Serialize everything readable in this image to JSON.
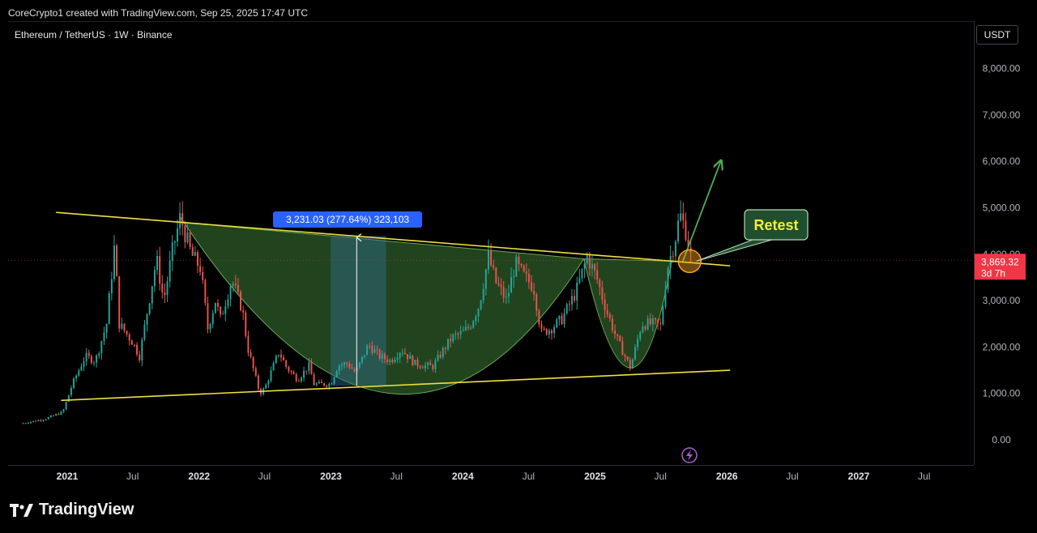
{
  "caption": "CoreCrypto1 created with TradingView.com, Sep 25, 2025 17:47 UTC",
  "symbol": "Ethereum / TetherUS · 1W · Binance",
  "currency": "USDT",
  "brand": "TradingView",
  "colors": {
    "up": "#26a69a",
    "down": "#ef5350",
    "trendline": "#f0e040",
    "pattern_fill": "#2e5e2a",
    "arrow": "#4caf50",
    "badge": "#2962ff",
    "price_tag": "#f23645"
  },
  "chart_data": {
    "type": "candlestick",
    "title": "Ethereum / TetherUS · 1W · Binance",
    "ylim": [
      -600,
      9000
    ],
    "y_ticks": [
      0,
      1000,
      2000,
      3000,
      4000,
      5000,
      6000,
      7000,
      8000
    ],
    "y_tick_labels": [
      "0.00",
      "1,000.00",
      "2,000.00",
      "3,000.00",
      "4,000.00",
      "5,000.00",
      "6,000.00",
      "7,000.00",
      "8,000.00"
    ],
    "x_ticks": [
      {
        "label": "2021",
        "date": "2021-01-01",
        "bold": true
      },
      {
        "label": "Jul",
        "date": "2021-07-01",
        "bold": false
      },
      {
        "label": "2022",
        "date": "2022-01-01",
        "bold": true
      },
      {
        "label": "Jul",
        "date": "2022-07-01",
        "bold": false
      },
      {
        "label": "2023",
        "date": "2023-01-01",
        "bold": true
      },
      {
        "label": "Jul",
        "date": "2023-07-01",
        "bold": false
      },
      {
        "label": "2024",
        "date": "2024-01-01",
        "bold": true
      },
      {
        "label": "Jul",
        "date": "2024-07-01",
        "bold": false
      },
      {
        "label": "2025",
        "date": "2025-01-01",
        "bold": true
      },
      {
        "label": "Jul",
        "date": "2025-07-01",
        "bold": false
      },
      {
        "label": "2026",
        "date": "2026-01-01",
        "bold": true
      },
      {
        "label": "Jul",
        "date": "2026-07-01",
        "bold": false
      },
      {
        "label": "2027",
        "date": "2027-01-01",
        "bold": true
      },
      {
        "label": "Jul",
        "date": "2027-07-01",
        "bold": false
      }
    ],
    "price_path": [
      [
        "2020-09-01",
        360
      ],
      [
        "2020-11-01",
        450
      ],
      [
        "2020-12-20",
        600
      ],
      [
        "2021-01-15",
        1200
      ],
      [
        "2021-02-20",
        1800
      ],
      [
        "2021-03-20",
        1700
      ],
      [
        "2021-04-20",
        2500
      ],
      [
        "2021-05-12",
        4200
      ],
      [
        "2021-05-25",
        2500
      ],
      [
        "2021-07-01",
        2100
      ],
      [
        "2021-07-20",
        1800
      ],
      [
        "2021-08-20",
        3200
      ],
      [
        "2021-09-05",
        3900
      ],
      [
        "2021-09-25",
        3000
      ],
      [
        "2021-10-20",
        4100
      ],
      [
        "2021-11-10",
        4800
      ],
      [
        "2021-12-10",
        4000
      ],
      [
        "2022-01-05",
        3700
      ],
      [
        "2022-01-25",
        2400
      ],
      [
        "2022-02-15",
        3000
      ],
      [
        "2022-03-01",
        2600
      ],
      [
        "2022-04-01",
        3450
      ],
      [
        "2022-05-01",
        2800
      ],
      [
        "2022-05-15",
        2000
      ],
      [
        "2022-06-18",
        1000
      ],
      [
        "2022-07-01",
        1100
      ],
      [
        "2022-08-10",
        1900
      ],
      [
        "2022-09-01",
        1550
      ],
      [
        "2022-10-01",
        1300
      ],
      [
        "2022-11-01",
        1600
      ],
      [
        "2022-11-15",
        1200
      ],
      [
        "2022-12-31",
        1200
      ],
      [
        "2023-01-20",
        1600
      ],
      [
        "2023-02-15",
        1650
      ],
      [
        "2023-03-10",
        1450
      ],
      [
        "2023-04-15",
        2050
      ],
      [
        "2023-05-15",
        1800
      ],
      [
        "2023-06-15",
        1700
      ],
      [
        "2023-07-15",
        1950
      ],
      [
        "2023-08-20",
        1650
      ],
      [
        "2023-09-15",
        1600
      ],
      [
        "2023-10-10",
        1580
      ],
      [
        "2023-11-01",
        1850
      ],
      [
        "2023-12-01",
        2200
      ],
      [
        "2023-12-31",
        2300
      ],
      [
        "2024-01-20",
        2450
      ],
      [
        "2024-02-15",
        2900
      ],
      [
        "2024-03-12",
        3950
      ],
      [
        "2024-04-01",
        3400
      ],
      [
        "2024-05-01",
        3000
      ],
      [
        "2024-05-25",
        3800
      ],
      [
        "2024-06-20",
        3500
      ],
      [
        "2024-07-15",
        3300
      ],
      [
        "2024-08-05",
        2300
      ],
      [
        "2024-09-01",
        2400
      ],
      [
        "2024-10-01",
        2600
      ],
      [
        "2024-11-10",
        3200
      ],
      [
        "2024-12-10",
        3950
      ],
      [
        "2025-01-05",
        3500
      ],
      [
        "2025-02-01",
        2800
      ],
      [
        "2025-03-01",
        2200
      ],
      [
        "2025-04-09",
        1550
      ],
      [
        "2025-05-10",
        2500
      ],
      [
        "2025-06-15",
        2500
      ],
      [
        "2025-07-01",
        2450
      ],
      [
        "2025-07-20",
        3700
      ],
      [
        "2025-08-10",
        4300
      ],
      [
        "2025-08-24",
        4850
      ],
      [
        "2025-09-10",
        4500
      ],
      [
        "2025-09-25",
        3869
      ]
    ],
    "trendlines": [
      {
        "name": "resistance",
        "points": [
          [
            "2020-12-01",
            4900
          ],
          [
            "2026-01-10",
            3750
          ]
        ]
      },
      {
        "name": "support",
        "points": [
          [
            "2020-12-15",
            850
          ],
          [
            "2026-01-10",
            1500
          ]
        ]
      }
    ],
    "cup": {
      "start": [
        "2021-11-10",
        4800
      ],
      "bottom": [
        "2023-06-15",
        1000
      ],
      "end": [
        "2024-12-01",
        3900
      ]
    },
    "handle": {
      "start": [
        "2024-12-01",
        3900
      ],
      "bottom": [
        "2025-04-09",
        1550
      ],
      "end": [
        "2025-08-01",
        3850
      ]
    },
    "measure": {
      "from": [
        "2022-12-31",
        1164
      ],
      "to": [
        "2023-04-01",
        4395
      ],
      "label": "3,231.03 (277.64%) 323,103"
    },
    "target_arrow": {
      "from": [
        "2025-09-01",
        3850
      ],
      "to": [
        "2025-12-15",
        6000
      ]
    },
    "retest_circle": [
      "2025-09-20",
      3850
    ],
    "annotation": {
      "text": "Retest",
      "anchor": [
        "2025-09-25",
        3850
      ]
    },
    "last_price": {
      "value": 3869.32,
      "label": "3,869.32",
      "countdown": "3d 7h"
    }
  }
}
